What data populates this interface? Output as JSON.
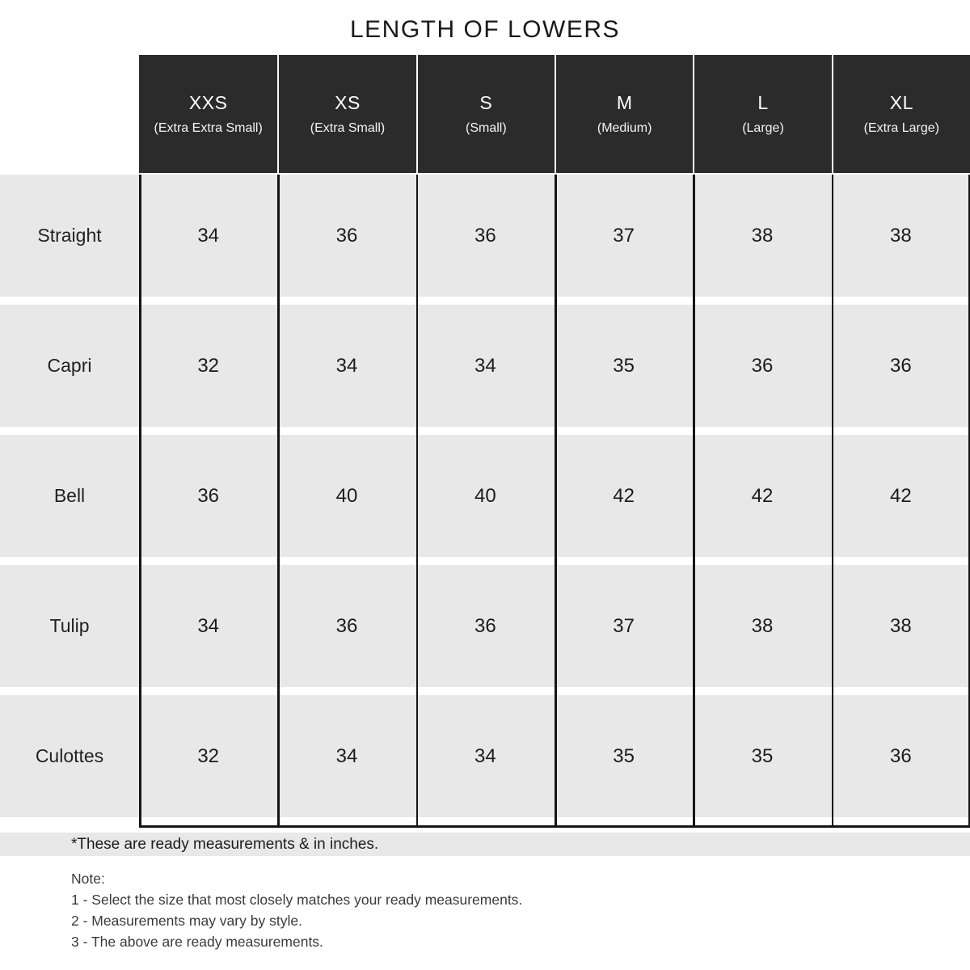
{
  "title": "LENGTH OF LOWERS",
  "chart_data": {
    "type": "table",
    "title": "LENGTH OF LOWERS",
    "unit": "inches",
    "columns": [
      {
        "code": "XXS",
        "label": "(Extra Extra Small)"
      },
      {
        "code": "XS",
        "label": "(Extra Small)"
      },
      {
        "code": "S",
        "label": "(Small)"
      },
      {
        "code": "M",
        "label": "(Medium)"
      },
      {
        "code": "L",
        "label": "(Large)"
      },
      {
        "code": "XL",
        "label": "(Extra Large)"
      }
    ],
    "rows": [
      {
        "label": "Straight",
        "values": [
          34,
          36,
          36,
          37,
          38,
          38
        ]
      },
      {
        "label": "Capri",
        "values": [
          32,
          34,
          34,
          35,
          36,
          36
        ]
      },
      {
        "label": "Bell",
        "values": [
          36,
          40,
          40,
          42,
          42,
          42
        ]
      },
      {
        "label": "Tulip",
        "values": [
          34,
          36,
          36,
          37,
          38,
          38
        ]
      },
      {
        "label": "Culottes",
        "values": [
          32,
          34,
          34,
          35,
          35,
          36
        ]
      }
    ]
  },
  "footnote": "*These are ready measurements & in inches.",
  "notes": {
    "heading": "Note:",
    "items": [
      "1 - Select the size that most closely matches your ready measurements.",
      "2 - Measurements may vary by style.",
      "3 - The above are ready measurements."
    ]
  },
  "colors": {
    "header_bg": "#2b2b2b",
    "header_text": "#ffffff",
    "row_bg": "#e9e8e8",
    "grid_line": "#151515",
    "text": "#1e1e1e",
    "note_text": "#3a3a3a"
  }
}
